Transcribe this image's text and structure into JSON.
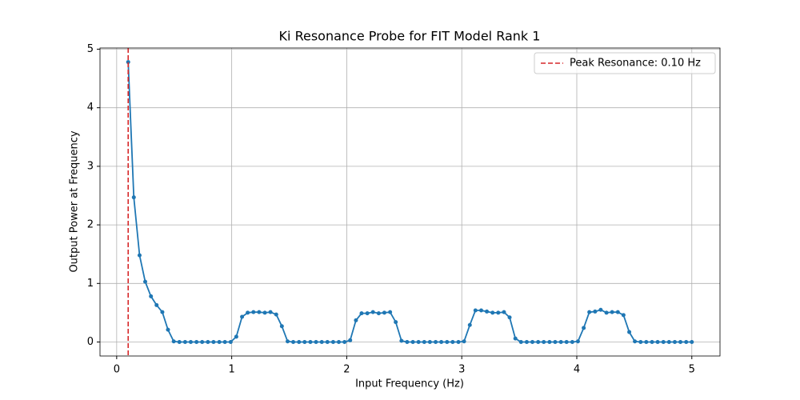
{
  "chart_data": {
    "type": "line",
    "title": "Ki Resonance Probe for FIT Model Rank 1",
    "x_label": "Input Frequency (Hz)",
    "y_label": "Output Power at Frequency",
    "x": [
      0.1,
      0.149,
      0.199,
      0.248,
      0.298,
      0.347,
      0.397,
      0.446,
      0.496,
      0.545,
      0.595,
      0.644,
      0.694,
      0.743,
      0.793,
      0.842,
      0.892,
      0.941,
      0.991,
      1.04,
      1.09,
      1.139,
      1.189,
      1.238,
      1.288,
      1.337,
      1.387,
      1.436,
      1.486,
      1.535,
      1.585,
      1.634,
      1.684,
      1.733,
      1.783,
      1.832,
      1.882,
      1.931,
      1.981,
      2.03,
      2.08,
      2.129,
      2.179,
      2.228,
      2.278,
      2.327,
      2.377,
      2.426,
      2.476,
      2.525,
      2.575,
      2.624,
      2.674,
      2.723,
      2.773,
      2.822,
      2.872,
      2.921,
      2.971,
      3.02,
      3.07,
      3.119,
      3.169,
      3.218,
      3.268,
      3.317,
      3.367,
      3.416,
      3.466,
      3.515,
      3.565,
      3.614,
      3.664,
      3.713,
      3.763,
      3.812,
      3.862,
      3.911,
      3.961,
      4.01,
      4.06,
      4.109,
      4.159,
      4.208,
      4.258,
      4.307,
      4.357,
      4.406,
      4.456,
      4.505,
      4.555,
      4.604,
      4.654,
      4.703,
      4.753,
      4.802,
      4.852,
      4.901,
      4.951,
      5.0
    ],
    "series": [
      {
        "color": "#1f77b4",
        "values": [
          4.78,
          2.47,
          1.48,
          1.03,
          0.78,
          0.63,
          0.51,
          0.21,
          0.01,
          0,
          0,
          0,
          0,
          0,
          0,
          0,
          0,
          0,
          0,
          0.09,
          0.43,
          0.5,
          0.51,
          0.51,
          0.5,
          0.51,
          0.47,
          0.27,
          0.01,
          0,
          0,
          0,
          0,
          0,
          0,
          0,
          0,
          0,
          0,
          0.03,
          0.37,
          0.49,
          0.49,
          0.51,
          0.49,
          0.5,
          0.51,
          0.34,
          0.02,
          0,
          0,
          0,
          0,
          0,
          0,
          0,
          0,
          0,
          0,
          0.01,
          0.29,
          0.54,
          0.54,
          0.52,
          0.5,
          0.5,
          0.51,
          0.42,
          0.06,
          0,
          0,
          0,
          0,
          0,
          0,
          0,
          0,
          0,
          0,
          0.01,
          0.24,
          0.51,
          0.52,
          0.55,
          0.5,
          0.51,
          0.51,
          0.46,
          0.17,
          0.01,
          0,
          0,
          0,
          0,
          0,
          0,
          0,
          0,
          0,
          0
        ]
      }
    ],
    "vline": {
      "x": 0.1,
      "name": "Peak Resonance: 0.10 Hz",
      "color": "#d62728"
    },
    "xlim": [
      -0.145,
      5.245
    ],
    "ylim": [
      -0.239,
      5.02
    ],
    "xticks": [
      0,
      1,
      2,
      3,
      4,
      5
    ],
    "yticks": [
      0,
      1,
      2,
      3,
      4,
      5
    ],
    "grid": true,
    "legend": "upper right"
  }
}
